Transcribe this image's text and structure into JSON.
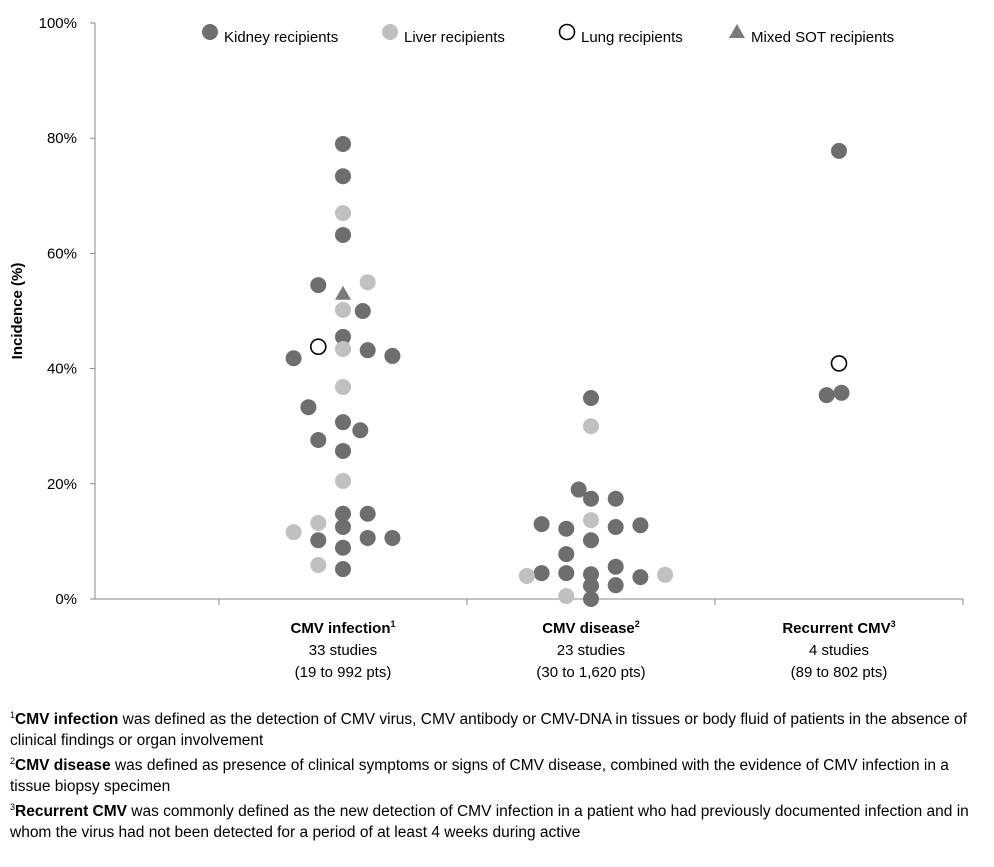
{
  "chart_data": {
    "type": "scatter",
    "ylabel": "Incidence (%)",
    "ylim": [
      0,
      100
    ],
    "yticks": [
      "0%",
      "20%",
      "40%",
      "60%",
      "80%",
      "100%"
    ],
    "grid": false,
    "legend_placement": "top",
    "legend": [
      {
        "key": "kidney",
        "label": "Kidney recipients",
        "color": "#6e6e6e",
        "marker": "circle"
      },
      {
        "key": "liver",
        "label": "Liver recipients",
        "color": "#c0c0c0",
        "marker": "circle"
      },
      {
        "key": "lung",
        "label": "Lung recipients",
        "color": "#ffffff",
        "marker": "open-circle"
      },
      {
        "key": "mixed",
        "label": "Mixed SOT recipients",
        "color": "#7a7a7a",
        "marker": "triangle"
      }
    ],
    "categories": [
      {
        "name": "CMV infection",
        "sup": "1",
        "studies": "33 studies",
        "range": "(19 to 992 pts)"
      },
      {
        "name": "CMV disease",
        "sup": "2",
        "studies": "23 studies",
        "range": "(30 to 1,620 pts)"
      },
      {
        "name": "Recurrent CMV",
        "sup": "3",
        "studies": "4 studies",
        "range": "(89 to 802 pts)"
      }
    ],
    "series": {
      "CMV infection": {
        "kidney": [
          79,
          73.4,
          63.2,
          54.5,
          50,
          45.5,
          43.2,
          42.2,
          41.8,
          33.3,
          30.7,
          29.3,
          27.6,
          25.7,
          14.8,
          14.8,
          12.5,
          10.2,
          10.6,
          10.6,
          8.9,
          5.2
        ],
        "liver": [
          67,
          55,
          50.2,
          43.4,
          36.8,
          20.5,
          13.2,
          11.6,
          5.9
        ],
        "lung": [
          43.8
        ],
        "mixed": [
          53
        ]
      },
      "CMV disease": {
        "kidney": [
          34.9,
          19,
          17.4,
          17.4,
          13,
          12.2,
          12.5,
          12.8,
          10.2,
          7.8,
          4.5,
          4.5,
          4.3,
          5.6,
          3.8,
          2.3,
          2.4,
          0
        ],
        "liver": [
          30,
          13.7,
          4,
          4.2,
          0.5
        ],
        "lung": [],
        "mixed": []
      },
      "Recurrent CMV": {
        "kidney": [
          77.8,
          35.4,
          35.8
        ],
        "liver": [],
        "lung": [
          40.9
        ],
        "mixed": []
      }
    }
  },
  "footnotes": [
    {
      "sup": "1",
      "term": "CMV infection",
      "text": " was defined as the detection of CMV virus, CMV antibody or CMV-DNA in tissues or body fluid of patients in the absence of clinical findings or organ involvement"
    },
    {
      "sup": "2",
      "term": "CMV disease",
      "text": " was defined as presence of clinical symptoms or signs of CMV disease, combined with the evidence of CMV infection in a tissue biopsy specimen"
    },
    {
      "sup": "3",
      "term": "Recurrent CMV",
      "text": " was commonly defined as the new detection of CMV infection in a patient who had previously documented infection and in whom the virus had not been detected for a period of at least 4 weeks during active"
    }
  ]
}
